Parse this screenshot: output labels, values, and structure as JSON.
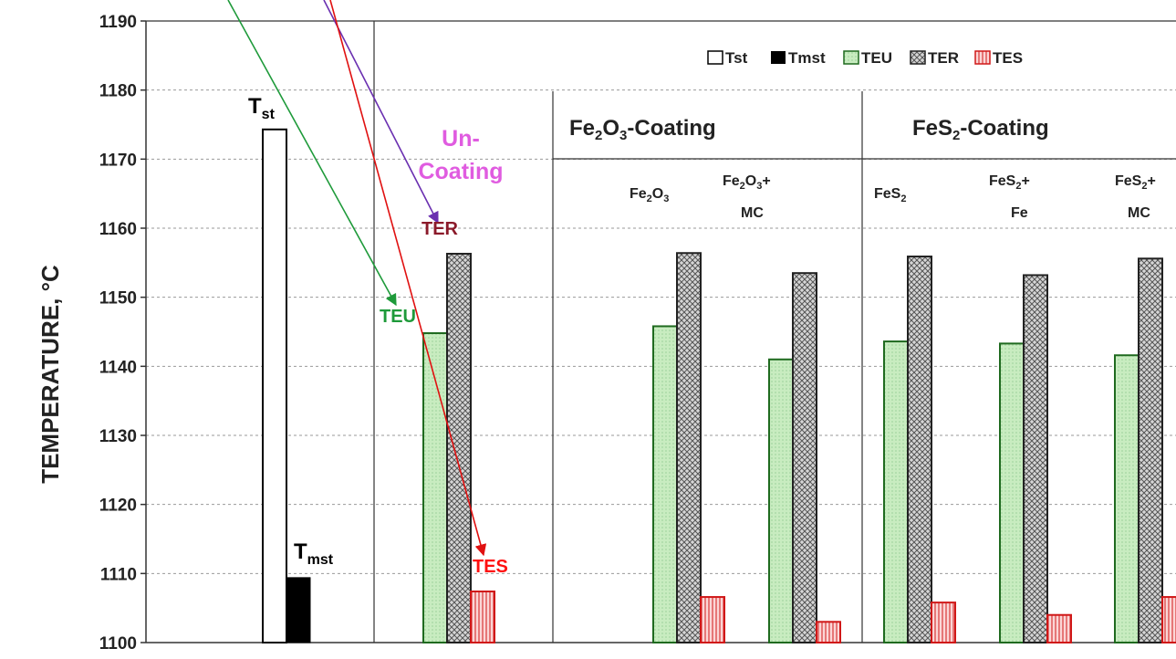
{
  "chart_data": {
    "type": "bar",
    "title": "",
    "ylabel": "TEMPERATURE, °C",
    "xlabel": "",
    "ylim": [
      1100,
      1190
    ],
    "yticks": [
      "1100",
      "1110",
      "1120",
      "1130",
      "1140",
      "1150",
      "1160",
      "1170",
      "1180",
      "1190"
    ],
    "legend": {
      "placement": "top-right",
      "entries": [
        "Tst",
        "Tmst",
        "TEU",
        "TER",
        "TES"
      ]
    },
    "reference": {
      "Tst": 1174.3,
      "Tmst": 1109.4
    },
    "groups": [
      {
        "label": "Un-Coating",
        "subgroups": [
          {
            "label": "",
            "TEU": 1144.8,
            "TER": 1156.3,
            "TES": 1107.4
          }
        ]
      },
      {
        "label": "Fe2O3-Coating",
        "subgroups": [
          {
            "label": "Fe2O3",
            "TEU": 1145.8,
            "TER": 1156.4,
            "TES": 1106.6
          },
          {
            "label": "Fe2O3+ MC",
            "TEU": 1141.0,
            "TER": 1153.5,
            "TES": 1103.0
          }
        ]
      },
      {
        "label": "FeS2-Coating",
        "subgroups": [
          {
            "label": "FeS2",
            "TEU": 1143.6,
            "TER": 1155.9,
            "TES": 1105.8
          },
          {
            "label": "FeS2+ Fe",
            "TEU": 1143.3,
            "TER": 1153.2,
            "TES": 1104.0
          },
          {
            "label": "FeS2+ MC",
            "TEU": 1141.6,
            "TER": 1155.6,
            "TES": 1106.6
          }
        ]
      }
    ],
    "annotations": {
      "Tst": "Tst",
      "Tmst": "Tmst",
      "TER": "TER",
      "TEU": "TEU",
      "TES": "TES"
    },
    "colors": {
      "TEU": "#c8ecc0",
      "TEU_stroke": "#1f6a1f",
      "TER": "#bdbdbd",
      "TES": "#f6b9b9",
      "TES_stroke": "#d01818",
      "Tmst": "#000000",
      "Tst": "#ffffff",
      "TER_arrow": "#6a2fb0",
      "TEU_arrow": "#1e9a3a",
      "TES_arrow": "#e01010",
      "TER_text": "#8b1a2a",
      "TEU_text": "#1e9a3a",
      "TES_text": "#ff1010",
      "uncoating_text": "#e05ce0"
    }
  }
}
